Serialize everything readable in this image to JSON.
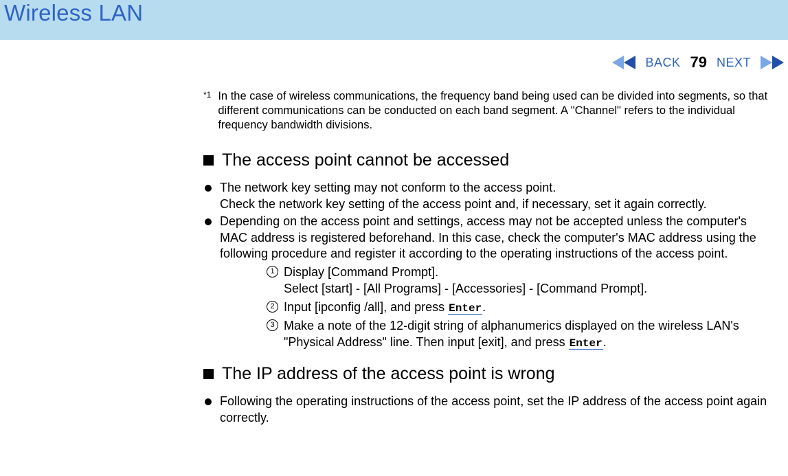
{
  "colors": {
    "header_bg": "#b7dcf0",
    "link_blue": "#2f64c3",
    "text": "#000000",
    "page_bg": "#ffffff",
    "keycap_underline": "#2f64c3"
  },
  "typography": {
    "title_fontsize": 33,
    "section_title_fontsize": 25,
    "body_fontsize": 18,
    "footnote_fontsize": 16.5,
    "nav_fontsize": 18,
    "page_num_fontsize": 22
  },
  "header": {
    "title": "Wireless LAN"
  },
  "nav": {
    "back_label": "BACK",
    "page_number": "79",
    "next_label": "NEXT",
    "arrow_left_color_a": "#7aa8e6",
    "arrow_left_color_b": "#1f4fa8",
    "arrow_right_color_a": "#7aa8e6",
    "arrow_right_color_b": "#1f4fa8"
  },
  "footnote": {
    "mark": "*1",
    "text": "In the case of wireless communications, the frequency band being used can be divided into segments, so that different communications can be conducted on each band segment.  A \"Channel\" refers to the individual frequency bandwidth divisions."
  },
  "sections": [
    {
      "title": "The access point cannot be accessed",
      "bullets": [
        {
          "lines": [
            "The network key setting may not conform to the access point.",
            "Check the network key setting of the access point and, if necessary, set it again correctly."
          ]
        },
        {
          "lines": [
            "Depending on the access point and settings, access may not be accepted unless the computer's MAC address is registered beforehand.   In this case, check the computer's MAC address using the following procedure and register it according to the operating instructions of the access point."
          ],
          "steps": [
            {
              "num": "1",
              "parts": [
                {
                  "t": "text",
                  "v": "Display [Command Prompt]."
                },
                {
                  "t": "br"
                },
                {
                  "t": "text",
                  "v": "Select [start] - [All Programs] - [Accessories] - [Command Prompt]."
                }
              ]
            },
            {
              "num": "2",
              "parts": [
                {
                  "t": "text",
                  "v": "Input [ipconfig /all], and press "
                },
                {
                  "t": "key",
                  "v": "Enter"
                },
                {
                  "t": "text",
                  "v": "."
                }
              ]
            },
            {
              "num": "3",
              "parts": [
                {
                  "t": "text",
                  "v": "Make a note of the 12-digit string of alphanumerics displayed on the wireless LAN's \"Physical Address\" line.  Then input [exit], and press "
                },
                {
                  "t": "key",
                  "v": "Enter"
                },
                {
                  "t": "text",
                  "v": "."
                }
              ]
            }
          ]
        }
      ]
    },
    {
      "title": "The IP address of the access point is wrong",
      "bullets": [
        {
          "lines": [
            "Following the operating instructions of the access point, set the IP address of the access point again correctly."
          ]
        }
      ]
    }
  ]
}
